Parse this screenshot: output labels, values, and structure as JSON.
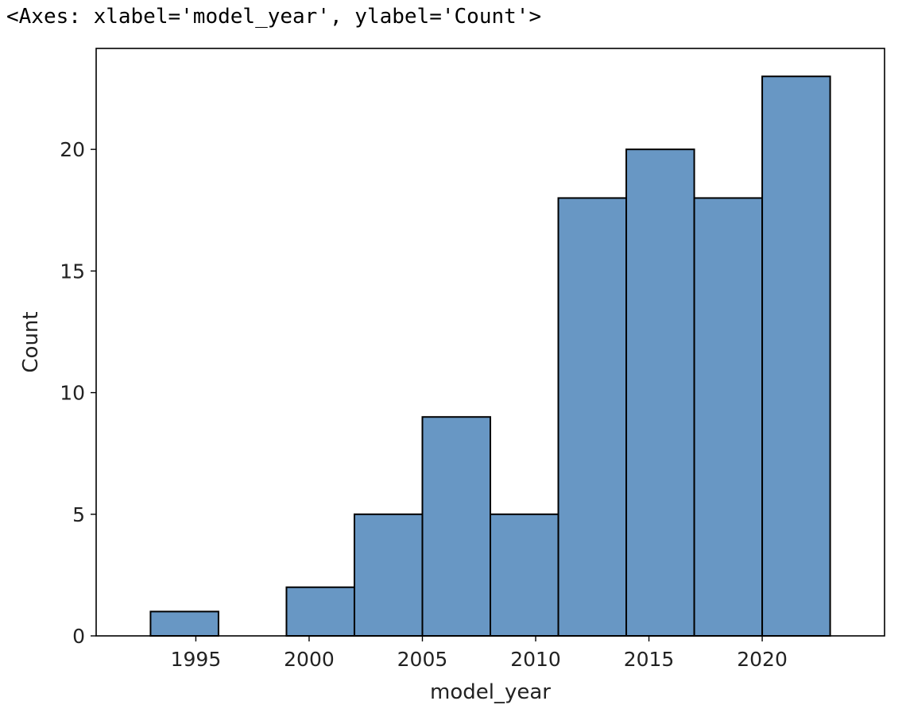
{
  "output_repr": "<Axes: xlabel='model_year', ylabel='Count'>",
  "chart_data": {
    "type": "bar",
    "subtype": "histogram",
    "xlabel": "model_year",
    "ylabel": "Count",
    "xlim": [
      1990.6,
      2025.4
    ],
    "ylim": [
      0,
      24.15
    ],
    "bin_edges": [
      1993,
      1996,
      1999,
      2002,
      2005,
      2008,
      2011,
      2014,
      2017,
      2020,
      2023
    ],
    "counts": [
      1,
      0,
      2,
      5,
      9,
      5,
      18,
      20,
      18,
      23
    ],
    "xticks": [
      1995,
      2000,
      2005,
      2010,
      2015,
      2020
    ],
    "yticks": [
      0,
      5,
      10,
      15,
      20
    ],
    "bar_color": "#6897c4",
    "edge_color": "#000000",
    "grid": false
  }
}
